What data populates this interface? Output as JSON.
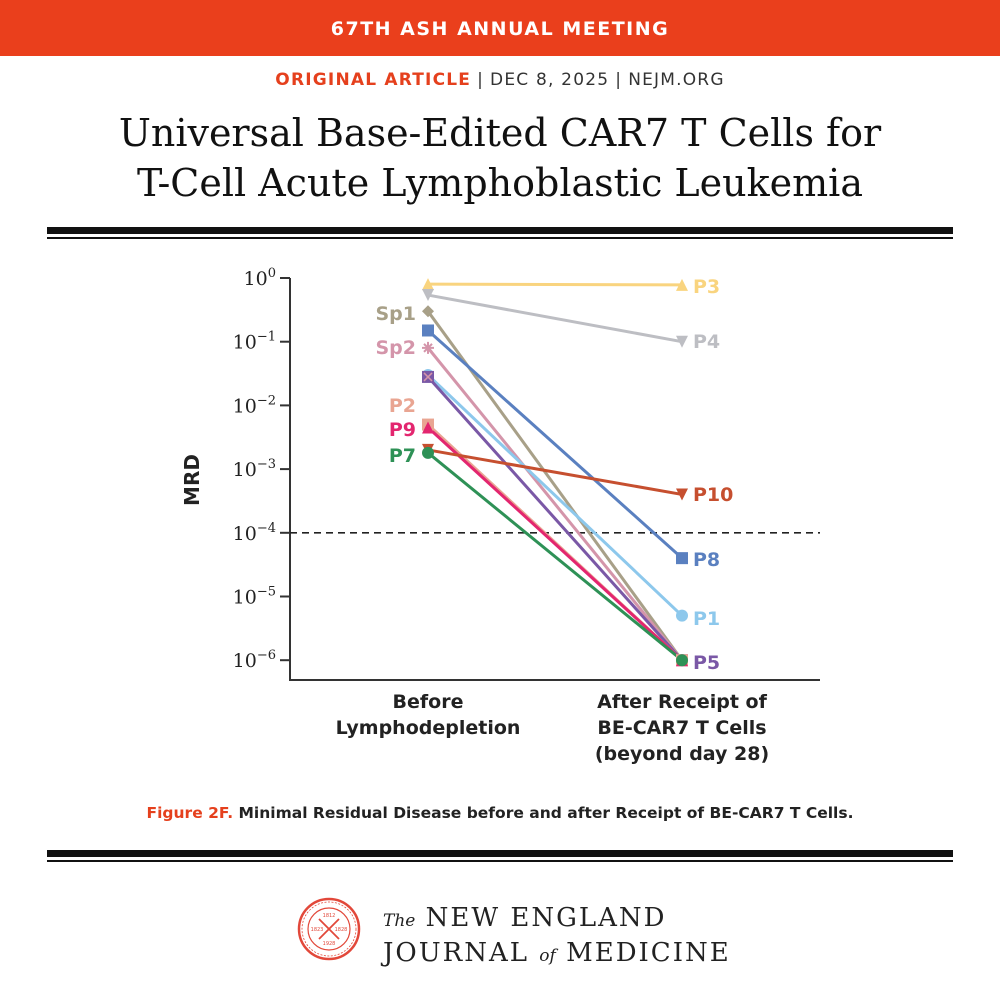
{
  "banner": {
    "text": "67TH ASH ANNUAL MEETING",
    "color": "#ea3f1c"
  },
  "meta": {
    "kind": "ORIGINAL ARTICLE",
    "date": "DEC 8, 2025",
    "site": "NEJM.ORG"
  },
  "title": {
    "line1": "Universal Base-Edited CAR7 T Cells for",
    "line2": "T-Cell Acute Lymphoblastic Leukemia"
  },
  "caption": {
    "figure": "Figure 2F.",
    "text": "Minimal Residual Disease before and after Receipt of BE-CAR7 T Cells."
  },
  "footer": {
    "logo_the": "The",
    "logo_line1": "NEW ENGLAND",
    "logo_of": "of",
    "logo_journal": "JOURNAL",
    "logo_medicine": "MEDICINE",
    "seal_text": "NEW ENGLAND JOURNAL OF MEDICINE 1812 1823 1828 1928"
  },
  "chart_data": {
    "type": "line",
    "ylabel": "MRD",
    "yscale": "log",
    "ylim": [
      1e-06,
      1
    ],
    "yticks": [
      {
        "base": "10",
        "exp": "0"
      },
      {
        "base": "10",
        "exp": "−1"
      },
      {
        "base": "10",
        "exp": "−2"
      },
      {
        "base": "10",
        "exp": "−3"
      },
      {
        "base": "10",
        "exp": "−4"
      },
      {
        "base": "10",
        "exp": "−5"
      },
      {
        "base": "10",
        "exp": "−6"
      }
    ],
    "categories": [
      {
        "lines": [
          "Before",
          "Lymphodepletion"
        ]
      },
      {
        "lines": [
          "After Receipt of",
          "BE-CAR7 T Cells",
          "(beyond day 28)"
        ]
      }
    ],
    "reference_line": {
      "value": 0.0001,
      "style": "dashed"
    },
    "series": [
      {
        "name": "P3",
        "values": [
          0.8,
          0.78
        ],
        "color": "#f9d47f",
        "marker": "triangle-up",
        "label_side": "after"
      },
      {
        "name": "P4",
        "values": [
          0.54,
          0.1
        ],
        "color": "#bdbec3",
        "marker": "triangle-down",
        "label_side": "after"
      },
      {
        "name": "Sp1",
        "values": [
          0.3,
          1e-06
        ],
        "color": "#a8a088",
        "marker": "diamond",
        "label_side": "before"
      },
      {
        "name": "P8",
        "values": [
          0.15,
          4e-05
        ],
        "color": "#5a80c0",
        "marker": "square",
        "label_side": "after"
      },
      {
        "name": "Sp2",
        "values": [
          0.08,
          1e-06
        ],
        "color": "#d495aa",
        "marker": "asterisk",
        "label_side": "before"
      },
      {
        "name": "P1",
        "values": [
          0.03,
          5e-06
        ],
        "color": "#8dc8ec",
        "marker": "circle",
        "label_side": "after"
      },
      {
        "name": "P5",
        "values": [
          0.028,
          1e-06
        ],
        "color": "#7a58a6",
        "marker": "square-x",
        "label_side": "after"
      },
      {
        "name": "P2",
        "values": [
          0.005,
          1e-06
        ],
        "color": "#e9a592",
        "marker": "square",
        "label_side": "before"
      },
      {
        "name": "P9",
        "values": [
          0.0045,
          1e-06
        ],
        "color": "#e3266f",
        "marker": "triangle-up",
        "label_side": "before"
      },
      {
        "name": "P10",
        "values": [
          0.002,
          0.0004
        ],
        "color": "#c64f2f",
        "marker": "triangle-down",
        "label_side": "after"
      },
      {
        "name": "P7",
        "values": [
          0.0018,
          1e-06
        ],
        "color": "#2e9156",
        "marker": "circle",
        "label_side": "before"
      }
    ]
  }
}
